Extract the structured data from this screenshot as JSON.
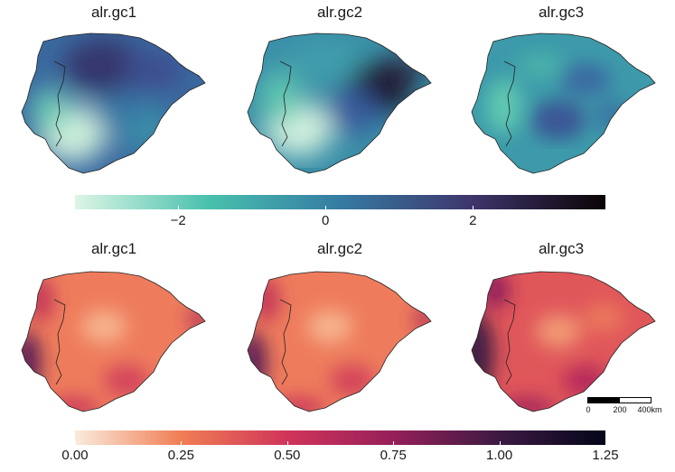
{
  "panels_top": [
    {
      "title": "alr.gc1"
    },
    {
      "title": "alr.gc2"
    },
    {
      "title": "alr.gc3"
    }
  ],
  "panels_bottom": [
    {
      "title": "alr.gc1"
    },
    {
      "title": "alr.gc2"
    },
    {
      "title": "alr.gc3"
    }
  ],
  "legend_top": {
    "min": -3.4,
    "max": 3.8,
    "ticks": [
      {
        "value": -2,
        "label": "−2"
      },
      {
        "value": 0,
        "label": "0"
      },
      {
        "value": 2,
        "label": "2"
      }
    ],
    "colors": [
      "#def5e5",
      "#49c1ad",
      "#357ba3",
      "#3e356b",
      "#0b0405"
    ]
  },
  "legend_bottom": {
    "min": 0.0,
    "max": 1.25,
    "ticks": [
      {
        "value": 0.0,
        "label": "0.00"
      },
      {
        "value": 0.25,
        "label": "0.25"
      },
      {
        "value": 0.5,
        "label": "0.50"
      },
      {
        "value": 0.75,
        "label": "0.75"
      },
      {
        "value": 1.0,
        "label": "1.00"
      },
      {
        "value": 1.25,
        "label": "1.25"
      }
    ],
    "colors": [
      "#faebdd",
      "#f07e54",
      "#d0345a",
      "#961f5a",
      "#3d1a42",
      "#03051a"
    ]
  },
  "scale_bar": {
    "labels": [
      "0",
      "200",
      "400km"
    ]
  }
}
